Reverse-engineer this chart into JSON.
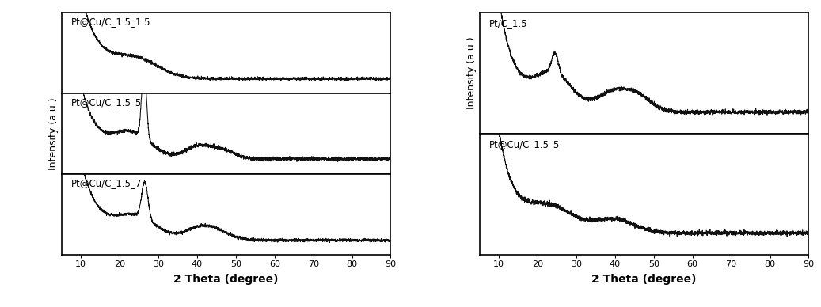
{
  "xlabel": "2 Theta (degree)",
  "ylabel": "Intensity (a.u.)",
  "xlim": [
    5,
    90
  ],
  "xticks": [
    10,
    20,
    30,
    40,
    50,
    60,
    70,
    80,
    90
  ],
  "left_labels": [
    "Pt@Cu/C_1.5_1.5",
    "Pt@Cu/C_1.5_5",
    "Pt@Cu/C_1.5_7"
  ],
  "right_labels": [
    "Pt/C_1.5",
    "Pt@Cu/C_1.5_5"
  ],
  "line_color": "#111111",
  "background_color": "#ffffff"
}
